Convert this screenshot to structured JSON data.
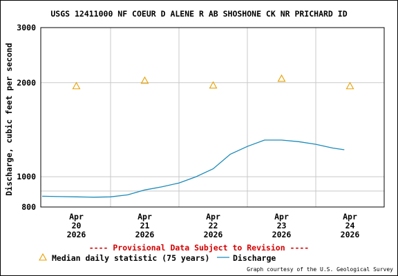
{
  "chart_data": {
    "type": "line",
    "title": "USGS 12411000 NF COEUR D ALENE R AB SHOSHONE CK NR PRICHARD ID",
    "ylabel": "Discharge, cubic feet per second",
    "y_scale": "log",
    "ylim": [
      800,
      3000
    ],
    "y_ticks": [
      {
        "value": 800,
        "label": "800"
      },
      {
        "value": 1000,
        "label": "1000"
      },
      {
        "value": 2000,
        "label": "2000"
      },
      {
        "value": 3000,
        "label": "3000"
      }
    ],
    "y_gridlines": [
      900,
      1000,
      2000
    ],
    "x_range_days": [
      "Apr 20 2026",
      "Apr 25 2026"
    ],
    "x_ticks": [
      {
        "day": 20,
        "line1": "Apr",
        "line2": "20",
        "line3": "2026"
      },
      {
        "day": 21,
        "line1": "Apr",
        "line2": "21",
        "line3": "2026"
      },
      {
        "day": 22,
        "line1": "Apr",
        "line2": "22",
        "line3": "2026"
      },
      {
        "day": 23,
        "line1": "Apr",
        "line2": "23",
        "line3": "2026"
      },
      {
        "day": 24,
        "line1": "Apr",
        "line2": "24",
        "line3": "2026"
      }
    ],
    "grid": true,
    "series": [
      {
        "name": "Median daily statistic (75 years)",
        "marker": "triangle",
        "color": "#e8a000",
        "points": [
          {
            "x": "Apr 20 2026 12:00",
            "y": 1950
          },
          {
            "x": "Apr 21 2026 12:00",
            "y": 2030
          },
          {
            "x": "Apr 22 2026 12:00",
            "y": 1960
          },
          {
            "x": "Apr 23 2026 12:00",
            "y": 2060
          },
          {
            "x": "Apr 24 2026 12:00",
            "y": 1950
          }
        ]
      },
      {
        "name": "Discharge",
        "marker": "line",
        "color": "#1a8ab8",
        "points": [
          {
            "x": "Apr 20 2026 00:00",
            "y": 866
          },
          {
            "x": "Apr 20 2026 06:00",
            "y": 864
          },
          {
            "x": "Apr 20 2026 12:00",
            "y": 862
          },
          {
            "x": "Apr 20 2026 18:00",
            "y": 860
          },
          {
            "x": "Apr 21 2026 00:00",
            "y": 862
          },
          {
            "x": "Apr 21 2026 06:00",
            "y": 875
          },
          {
            "x": "Apr 21 2026 12:00",
            "y": 907
          },
          {
            "x": "Apr 21 2026 18:00",
            "y": 928
          },
          {
            "x": "Apr 22 2026 00:00",
            "y": 955
          },
          {
            "x": "Apr 22 2026 06:00",
            "y": 1000
          },
          {
            "x": "Apr 22 2026 12:00",
            "y": 1060
          },
          {
            "x": "Apr 22 2026 18:00",
            "y": 1180
          },
          {
            "x": "Apr 23 2026 00:00",
            "y": 1250
          },
          {
            "x": "Apr 23 2026 06:00",
            "y": 1310
          },
          {
            "x": "Apr 23 2026 12:00",
            "y": 1310
          },
          {
            "x": "Apr 23 2026 18:00",
            "y": 1295
          },
          {
            "x": "Apr 24 2026 00:00",
            "y": 1270
          },
          {
            "x": "Apr 24 2026 06:00",
            "y": 1235
          },
          {
            "x": "Apr 24 2026 10:00",
            "y": 1220
          }
        ]
      }
    ]
  },
  "notes": {
    "provisional": "---- Provisional Data Subject to Revision ----",
    "credit": "Graph courtesy of the U.S. Geological Survey"
  },
  "colors": {
    "median": "#e8a000",
    "discharge": "#1a8ab8",
    "provisional": "#d40000",
    "grid": "#c8c8c8"
  }
}
